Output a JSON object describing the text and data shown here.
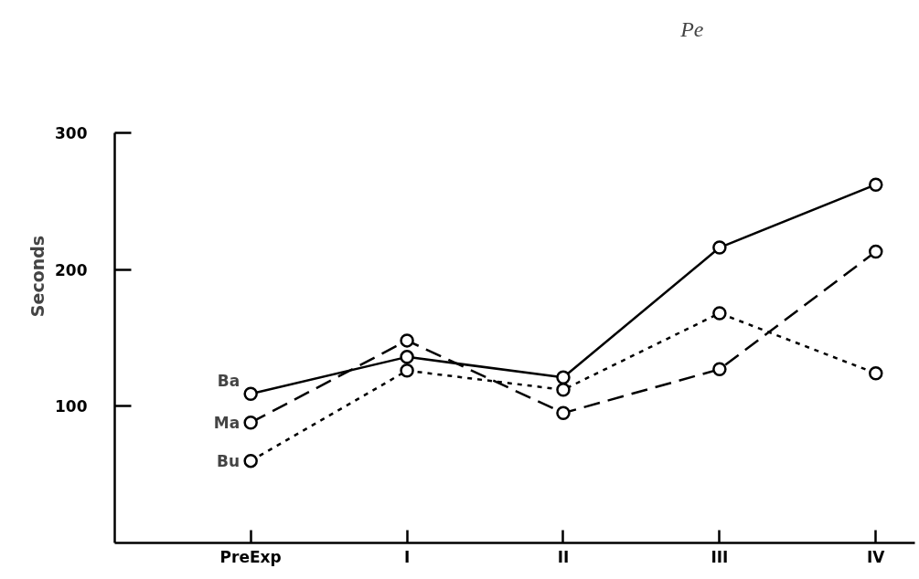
{
  "chart_data": {
    "type": "line",
    "ylabel": "Seconds",
    "categories": [
      "PreExp",
      "I",
      "II",
      "III",
      "IV"
    ],
    "series": [
      {
        "name": "Ba",
        "color": "#000000",
        "line_style": "solid",
        "values": [
          109,
          136,
          121,
          216,
          262
        ]
      },
      {
        "name": "Ma",
        "color": "#000000",
        "line_style": "dashed",
        "values": [
          88,
          148,
          95,
          127,
          213
        ]
      },
      {
        "name": "Bu",
        "color": "#000000",
        "line_style": "dotted",
        "values": [
          60,
          126,
          112,
          168,
          124
        ]
      }
    ],
    "ylim": [
      0,
      300
    ],
    "yticks": [
      100,
      200,
      300
    ],
    "grid": false,
    "legend": false,
    "marker": "circle",
    "annotations": [
      "Pe"
    ]
  }
}
